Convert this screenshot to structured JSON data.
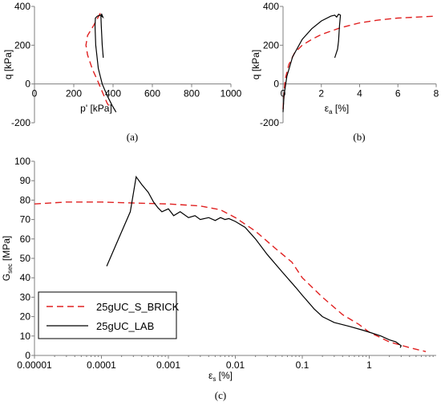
{
  "chart_data": [
    {
      "type": "line",
      "caption": "(a)",
      "xlabel": "p' [kPa]",
      "ylabel": "q [kPa]",
      "xlim": [
        0,
        1000
      ],
      "ylim": [
        -200,
        400
      ],
      "xticks": [
        0,
        200,
        400,
        600,
        800,
        1000
      ],
      "yticks": [
        -200,
        0,
        200,
        400
      ],
      "xtick_labels": [
        "0",
        "200",
        "400",
        "600",
        "800",
        "1000"
      ],
      "ytick_labels": [
        "-200",
        "0",
        "200",
        "400"
      ],
      "series": [
        {
          "color": "#e02020",
          "style": "dashed",
          "x": [
            335,
            300,
            270,
            262,
            270,
            295,
            320,
            345,
            370,
            390
          ],
          "y": [
            365,
            300,
            250,
            200,
            150,
            75,
            20,
            -40,
            -100,
            -130
          ]
        },
        {
          "color": "#000000",
          "style": "solid",
          "x": [
            350,
            345,
            340,
            338,
            342,
            348,
            335,
            320,
            310,
            308,
            312,
            325,
            345,
            370,
            395,
            415
          ],
          "y": [
            135,
            200,
            300,
            355,
            360,
            345,
            355,
            350,
            340,
            300,
            200,
            80,
            0,
            -60,
            -110,
            -145
          ]
        }
      ]
    },
    {
      "type": "line",
      "caption": "(b)",
      "xlabel": "εa [%]",
      "ylabel": "q [kPa]",
      "xlim": [
        0,
        8
      ],
      "ylim": [
        -200,
        400
      ],
      "xticks": [
        0,
        2,
        4,
        6,
        8
      ],
      "yticks": [
        -200,
        0,
        200,
        400
      ],
      "xtick_labels": [
        "0",
        "2",
        "4",
        "6",
        "8"
      ],
      "ytick_labels": [
        "-200",
        "0",
        "200",
        "400"
      ],
      "series": [
        {
          "color": "#e02020",
          "style": "dashed",
          "x": [
            0,
            0.1,
            0.3,
            0.6,
            1,
            1.5,
            2,
            3,
            4,
            5,
            6,
            7,
            8
          ],
          "y": [
            -130,
            20,
            100,
            160,
            200,
            230,
            255,
            290,
            315,
            330,
            340,
            345,
            350
          ]
        },
        {
          "color": "#000000",
          "style": "solid",
          "x": [
            0,
            0.05,
            0.2,
            0.5,
            1,
            1.5,
            2,
            2.5,
            2.7,
            2.8,
            2.9,
            3.0,
            2.95,
            2.9,
            2.85,
            2.7
          ],
          "y": [
            -145,
            -60,
            40,
            140,
            230,
            285,
            325,
            350,
            355,
            345,
            360,
            355,
            300,
            220,
            180,
            135
          ]
        }
      ]
    },
    {
      "type": "line",
      "caption": "(c)",
      "xlabel": "εs [%]",
      "ylabel": "Gsec [MPa]",
      "xscale": "log",
      "xlim": [
        1e-05,
        10
      ],
      "ylim": [
        0,
        100
      ],
      "xticks": [
        1e-05,
        0.0001,
        0.001,
        0.01,
        0.1,
        1
      ],
      "yticks": [
        0,
        10,
        20,
        30,
        40,
        50,
        60,
        70,
        80,
        90,
        100
      ],
      "xtick_labels": [
        "0.00001",
        "0.0001",
        "0.001",
        "0.01",
        "0.1",
        "1"
      ],
      "ytick_labels": [
        "0",
        "10",
        "20",
        "30",
        "40",
        "50",
        "60",
        "70",
        "80",
        "90",
        "100"
      ],
      "legend": "bottom-left",
      "series": [
        {
          "name": "25gUC_S_BRICK",
          "color": "#e02020",
          "style": "dashed",
          "x": [
            1e-05,
            3e-05,
            0.0001,
            0.0003,
            0.001,
            0.003,
            0.006,
            0.01,
            0.02,
            0.04,
            0.07,
            0.1,
            0.2,
            0.4,
            0.7,
            1,
            2,
            4,
            7
          ],
          "y": [
            78,
            79,
            79,
            78.5,
            78,
            77,
            75,
            71,
            64,
            55,
            48,
            40,
            30,
            21,
            16,
            12,
            7,
            4,
            2
          ]
        },
        {
          "name": "25gUC_LAB",
          "color": "#000000",
          "style": "solid",
          "x": [
            0.00012,
            0.00018,
            0.00027,
            0.00033,
            0.0004,
            0.0005,
            0.0006,
            0.0007,
            0.0008,
            0.001,
            0.0012,
            0.0015,
            0.002,
            0.0025,
            0.003,
            0.004,
            0.005,
            0.006,
            0.007,
            0.008,
            0.01,
            0.014,
            0.02,
            0.03,
            0.05,
            0.08,
            0.1,
            0.15,
            0.2,
            0.3,
            0.5,
            0.8,
            1,
            1.5,
            2,
            2.5,
            3,
            2.9
          ],
          "y": [
            46,
            60,
            74,
            92,
            88,
            84,
            79,
            76,
            74,
            75.5,
            72,
            74,
            71,
            72,
            70,
            71,
            69.5,
            71,
            70,
            70.5,
            69,
            66,
            60,
            52,
            43,
            35,
            31,
            24,
            20,
            17,
            15,
            13,
            12,
            10,
            8,
            7,
            5,
            4
          ]
        }
      ]
    }
  ]
}
